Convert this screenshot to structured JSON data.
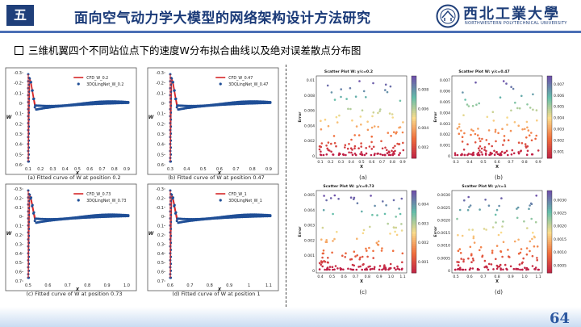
{
  "header": {
    "section_label": "五",
    "title": "面向空气动力学大模型的网络架构设计方法研究",
    "logo_cn": "西北工業大學",
    "logo_en": "NORTHWESTERN POLYTECHNICAL UNIVERSITY"
  },
  "subtitle": "三维机翼四个不同站位点下的速度W分布拟合曲线以及绝对误差散点分布图",
  "page_number": "64",
  "left_panels": [
    {
      "caption": "(a) Fitted curve of W at position 0.2",
      "legend_cfd": "CFD_W_0.2",
      "legend_pred": "3DQLingNet_W_0.2",
      "xlabel": "X",
      "ylabel": "W",
      "yticks": [
        "-0.3",
        "-0.2",
        "-0.1",
        "0",
        "0.1",
        "0.2",
        "0.3",
        "0.4",
        "0.5",
        "0.6"
      ],
      "xticks": [
        "0.1",
        "0.2",
        "0.3",
        "0.4",
        "0.5",
        "0.6",
        "0.7",
        "0.8",
        "0.9"
      ]
    },
    {
      "caption": "(b) Fitted curve of W at position 0.47",
      "legend_cfd": "CFD_W_0.47",
      "legend_pred": "3DQLingNet_W_0.47",
      "xlabel": "X",
      "ylabel": "W",
      "yticks": [
        "-0.3",
        "-0.2",
        "-0.1",
        "0",
        "0.1",
        "0.2",
        "0.3",
        "0.4",
        "0.5",
        "0.6"
      ],
      "xticks": [
        "0.3",
        "0.4",
        "0.5",
        "0.6",
        "0.7",
        "0.8",
        "0.9"
      ]
    },
    {
      "caption": "(c) Fitted curve of W at position 0.73",
      "legend_cfd": "CFD_W_0.73",
      "legend_pred": "3DQLingNet_W_0.73",
      "xlabel": "X",
      "ylabel": "W",
      "yticks": [
        "-0.3",
        "-0.2",
        "-0.1",
        "0",
        "0.1",
        "0.2",
        "0.3",
        "0.4",
        "0.5",
        "0.6",
        "0.7"
      ],
      "xticks": [
        "0.5",
        "0.6",
        "0.7",
        "0.8",
        "0.9",
        "1.0"
      ]
    },
    {
      "caption": "(d) Fitted curve of W at position 1",
      "legend_cfd": "CFD_W_1",
      "legend_pred": "3DQLingNet_W_1",
      "xlabel": "X",
      "ylabel": "W",
      "yticks": [
        "-0.3",
        "-0.2",
        "-0.1",
        "0",
        "0.1",
        "0.2",
        "0.3",
        "0.4",
        "0.5",
        "0.6",
        "0.7"
      ],
      "xticks": [
        "0.6",
        "0.7",
        "0.8",
        "0.9",
        "1",
        "1.1"
      ]
    }
  ],
  "right_panels": [
    {
      "title": "Scatter Plot W: y/c=0.2",
      "caption": "(a)",
      "xlabel": "X",
      "ylabel": "Error",
      "yticks": [
        "0",
        "0.002",
        "0.004",
        "0.006",
        "0.008",
        "0.01"
      ],
      "xticks": [
        "0.1",
        "0.2",
        "0.3",
        "0.4",
        "0.5",
        "0.6",
        "0.7",
        "0.8",
        "0.9"
      ],
      "cbticks": [
        "0.002",
        "0.004",
        "0.006",
        "0.008"
      ]
    },
    {
      "title": "Scatter Plot W: y/c=0.47",
      "caption": "(b)",
      "xlabel": "X",
      "ylabel": "Error",
      "yticks": [
        "0",
        "0.001",
        "0.002",
        "0.003",
        "0.004",
        "0.005",
        "0.006",
        "0.007"
      ],
      "xticks": [
        "0.3",
        "0.4",
        "0.5",
        "0.6",
        "0.7",
        "0.8",
        "0.9"
      ],
      "cbticks": [
        "0.001",
        "0.002",
        "0.003",
        "0.004",
        "0.005",
        "0.006",
        "0.007"
      ]
    },
    {
      "title": "Scatter Plot W: y/c=0.73",
      "caption": "(c)",
      "xlabel": "X",
      "ylabel": "Error",
      "yticks": [
        "0",
        "0.001",
        "0.002",
        "0.003",
        "0.004",
        "0.005"
      ],
      "xticks": [
        "0.4",
        "0.5",
        "0.6",
        "0.7",
        "0.8",
        "0.9",
        "1.0",
        "1.1"
      ],
      "cbticks": [
        "0.001",
        "0.002",
        "0.003",
        "0.004"
      ]
    },
    {
      "title": "Scatter Plot W: y/c=1",
      "caption": "(d)",
      "xlabel": "X",
      "ylabel": "Error",
      "yticks": [
        "0",
        "0.0005",
        "0.0010",
        "0.0015",
        "0.0020",
        "0.0025",
        "0.0030"
      ],
      "xticks": [
        "0.5",
        "0.6",
        "0.7",
        "0.8",
        "0.9",
        "1.0",
        "1.1"
      ],
      "cbticks": [
        "0.0005",
        "0.0010",
        "0.0015",
        "0.0020",
        "0.0025",
        "0.0030"
      ]
    }
  ],
  "colors": {
    "accent": "#1f3f7a",
    "cfd_line": "#d62728",
    "pred_marker": "#1f4e96"
  }
}
